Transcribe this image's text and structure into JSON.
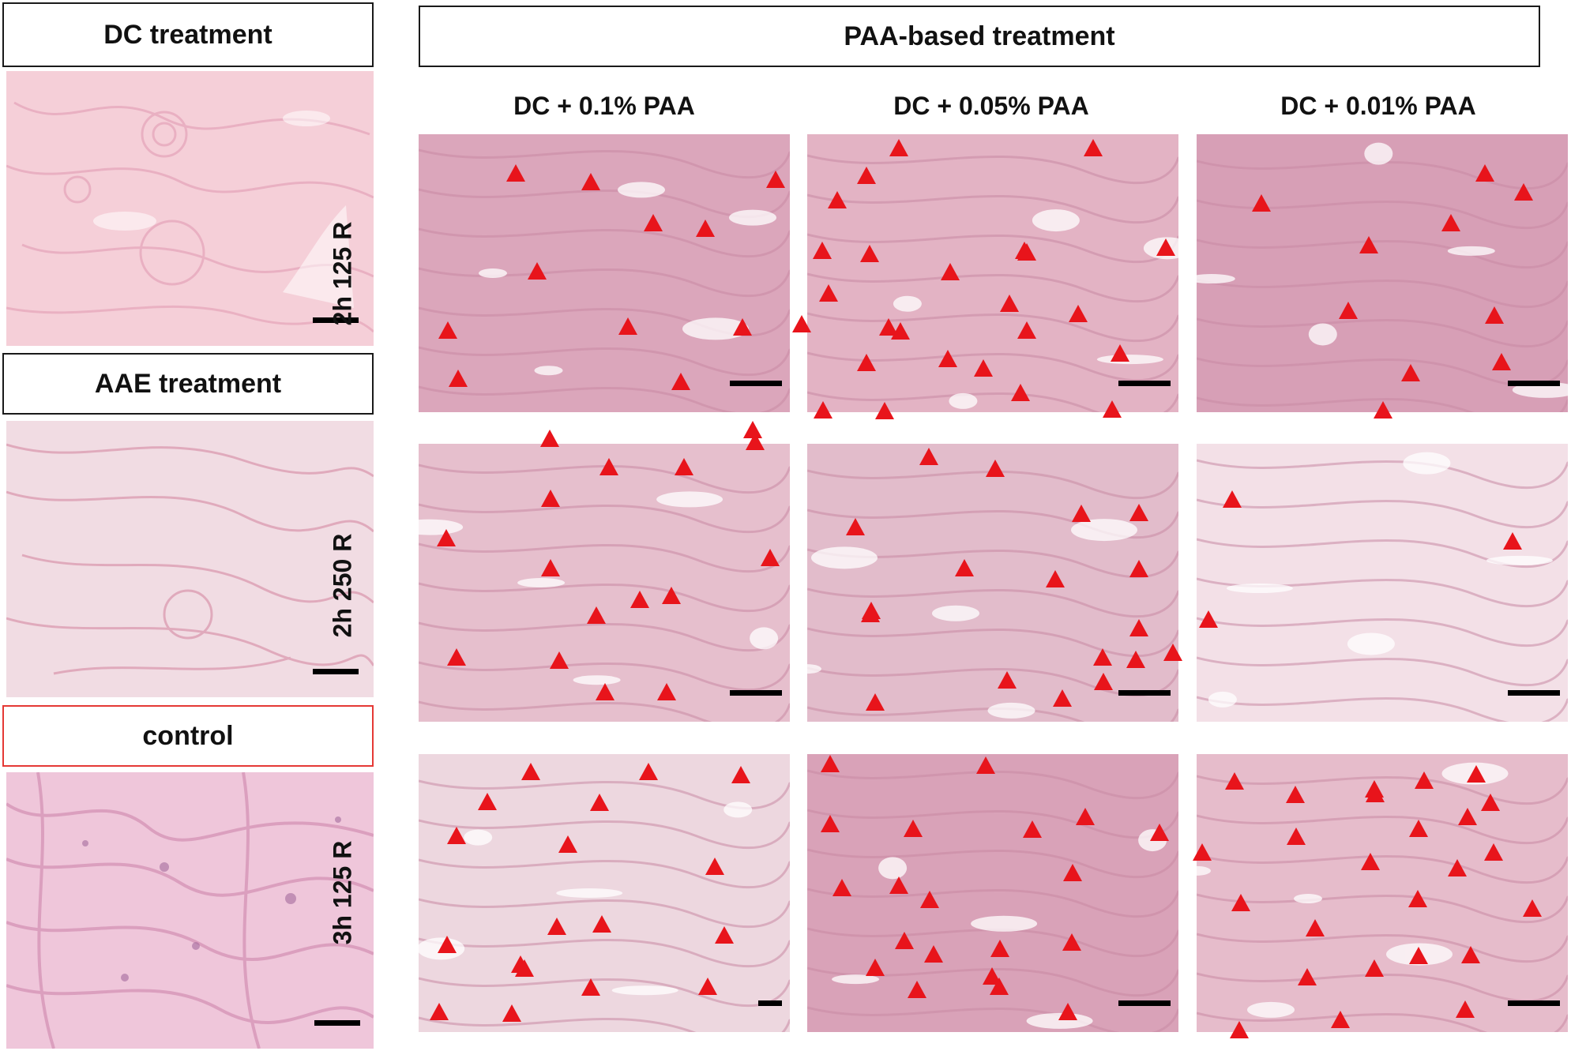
{
  "left_labels": {
    "dc": "DC treatment",
    "aae": "AAE treatment",
    "control": "control"
  },
  "paa_header": "PAA-based treatment",
  "columns": [
    "DC + 0.1% PAA",
    "DC + 0.05% PAA",
    "DC + 0.01% PAA"
  ],
  "rows": [
    "2h 125 R",
    "2h 250 R",
    "3h 125 R"
  ],
  "colors": {
    "marker": "#e8141b",
    "control_border": "#e53935",
    "tissue_dc": "#f4c9d3",
    "tissue_aae": "#efd6df",
    "tissue_control": "#eec4da",
    "tissue_dense": "#d9a1b7",
    "tissue_light": "#f3dde5"
  },
  "legend_note": "",
  "image_panels": [
    {
      "name": "dc-treatment-micrograph",
      "tone": "tissue_dc"
    },
    {
      "name": "aae-treatment-micrograph",
      "tone": "tissue_aae"
    },
    {
      "name": "control-micrograph",
      "tone": "tissue_control"
    }
  ]
}
